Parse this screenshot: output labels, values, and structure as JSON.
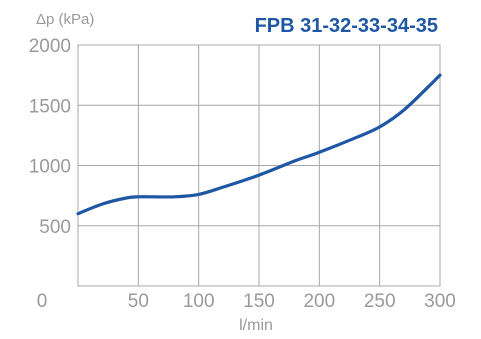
{
  "colors": {
    "series": "#1f57a4",
    "title": "#1f57a4",
    "text": "#9a9a9a",
    "grid": "#a8a8a8"
  },
  "chart_data": {
    "type": "line",
    "title": "FPB 31-32-33-34-35",
    "xlabel": "l/min",
    "ylabel": "Δp (kPa)",
    "xlim": [
      0,
      300
    ],
    "ylim": [
      0,
      2000
    ],
    "grid": true,
    "xticks": [
      "0",
      "50",
      "100",
      "150",
      "200",
      "250",
      "300"
    ],
    "yticks": [
      "500",
      "1000",
      "1500",
      "2000"
    ],
    "series": [
      {
        "x": [
          0,
          20,
          40,
          50,
          60,
          80,
          100,
          120,
          150,
          180,
          200,
          230,
          250,
          270,
          290,
          300
        ],
        "y": [
          600,
          680,
          730,
          740,
          740,
          740,
          760,
          820,
          920,
          1040,
          1110,
          1230,
          1320,
          1460,
          1650,
          1750
        ]
      }
    ]
  }
}
